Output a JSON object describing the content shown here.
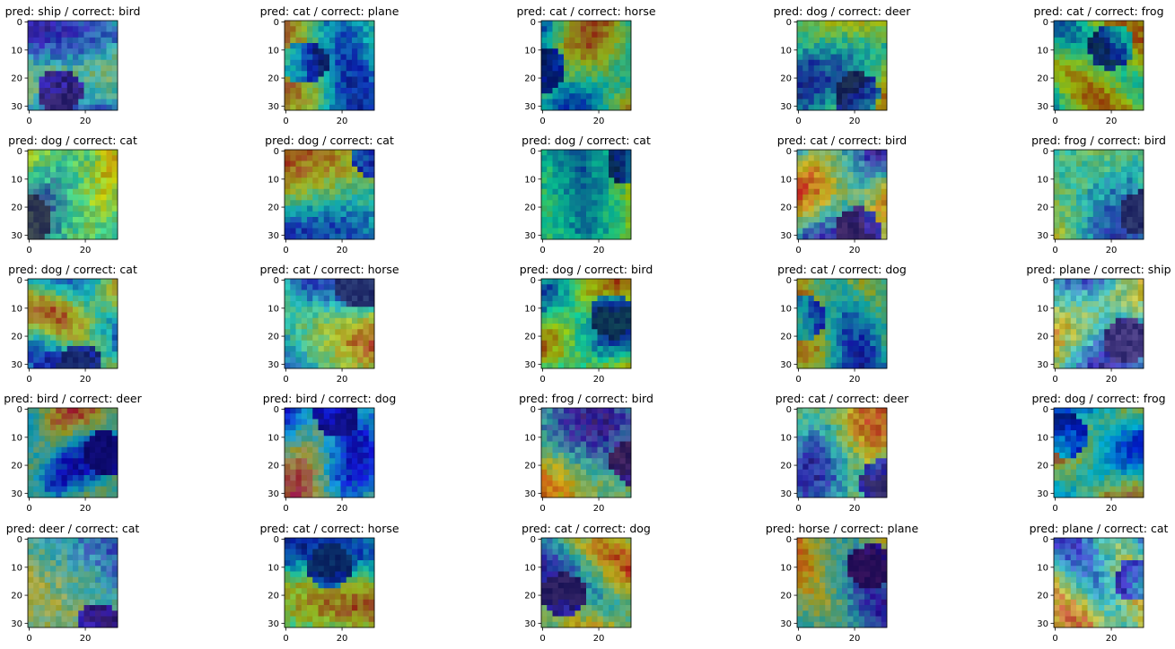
{
  "panels": [
    {
      "title": "pred: ship / correct: bird"
    },
    {
      "title": "pred: cat / correct: plane"
    },
    {
      "title": "pred: cat / correct: horse"
    },
    {
      "title": "pred: dog / correct: deer"
    },
    {
      "title": "pred: cat / correct: frog"
    },
    {
      "title": "pred: dog / correct: cat"
    },
    {
      "title": "pred: dog / correct: cat"
    },
    {
      "title": "pred: dog / correct: cat"
    },
    {
      "title": "pred: cat / correct: bird"
    },
    {
      "title": "pred: frog / correct: bird"
    },
    {
      "title": "pred: dog / correct: cat"
    },
    {
      "title": "pred: cat / correct: horse"
    },
    {
      "title": "pred: dog / correct: bird"
    },
    {
      "title": "pred: cat / correct: dog"
    },
    {
      "title": "pred: plane / correct: ship"
    },
    {
      "title": "pred: bird / correct: deer"
    },
    {
      "title": "pred: bird / correct: dog"
    },
    {
      "title": "pred: frog / correct: bird"
    },
    {
      "title": "pred: cat / correct: deer"
    },
    {
      "title": "pred: dog / correct: frog"
    },
    {
      "title": "pred: deer / correct: cat"
    },
    {
      "title": "pred: cat / correct: horse"
    },
    {
      "title": "pred: cat / correct: dog"
    },
    {
      "title": "pred: horse / correct: plane"
    },
    {
      "title": "pred: plane / correct: cat"
    }
  ],
  "axes": {
    "xlim": [
      -0.5,
      31.5
    ],
    "ylim": [
      31.5,
      -0.5
    ],
    "xticks": [
      0,
      20
    ],
    "yticks": [
      0,
      10,
      20,
      30
    ]
  }
}
